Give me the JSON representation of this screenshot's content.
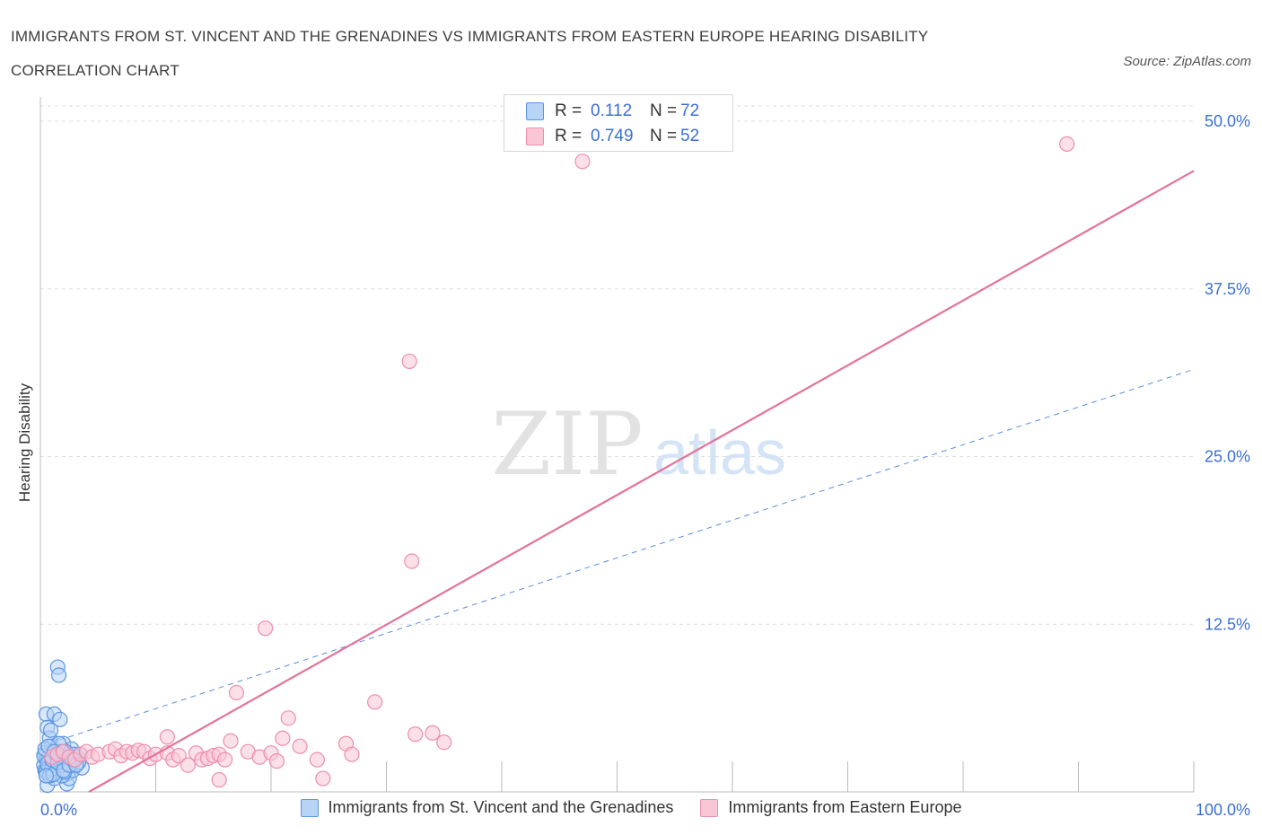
{
  "title": "IMMIGRANTS FROM ST. VINCENT AND THE GRENADINES VS IMMIGRANTS FROM EASTERN EUROPE HEARING DISABILITY CORRELATION CHART",
  "source": "Source: ZipAtlas.com",
  "watermark": {
    "zip": "ZIP",
    "atlas": "atlas"
  },
  "legend": {
    "rows": [
      {
        "r_label": "R =",
        "r_value": "0.112",
        "n_label": "N =",
        "n_value": "72"
      },
      {
        "r_label": "R =",
        "r_value": "0.749",
        "n_label": "N =",
        "n_value": "52"
      }
    ]
  },
  "colors": {
    "series1_fill": "#b8d4f5",
    "series1_stroke": "#5b95e0",
    "series1_line": "#5a8de0",
    "series2_fill": "#f9c6d6",
    "series2_stroke": "#ec8eae",
    "series2_line": "#e4729a",
    "grid": "#dddddd",
    "tick_label": "#3b6fd4"
  },
  "chart_data": {
    "type": "scatter",
    "title": "IMMIGRANTS FROM ST. VINCENT AND THE GRENADINES VS IMMIGRANTS FROM EASTERN EUROPE HEARING DISABILITY CORRELATION CHART",
    "xlabel": "",
    "ylabel": "Hearing Disability",
    "xlim": [
      0,
      100
    ],
    "ylim": [
      0,
      50
    ],
    "x_tick_labels": [
      "0.0%",
      "100.0%"
    ],
    "y_ticks": [
      12.5,
      25.0,
      37.5,
      50.0
    ],
    "y_tick_labels": [
      "12.5%",
      "25.0%",
      "37.5%",
      "50.0%"
    ],
    "grid": true,
    "legend_position": "top-center",
    "series": [
      {
        "name": "Immigrants from St. Vincent and the Grenadines",
        "R": 0.112,
        "N": 72,
        "trendline": {
          "style": "dashed",
          "x": [
            0,
            100
          ],
          "y": [
            3.4,
            31.5
          ]
        },
        "points": [
          [
            0.3,
            2.0
          ],
          [
            0.4,
            1.6
          ],
          [
            0.5,
            2.4
          ],
          [
            0.6,
            3.0
          ],
          [
            0.7,
            1.8
          ],
          [
            0.8,
            2.2
          ],
          [
            0.9,
            1.4
          ],
          [
            1.0,
            2.6
          ],
          [
            0.5,
            5.8
          ],
          [
            0.6,
            4.8
          ],
          [
            0.8,
            4.0
          ],
          [
            1.2,
            5.8
          ],
          [
            1.0,
            3.4
          ],
          [
            1.4,
            2.0
          ],
          [
            1.5,
            1.6
          ],
          [
            1.6,
            2.8
          ],
          [
            1.7,
            5.4
          ],
          [
            1.8,
            1.2
          ],
          [
            1.9,
            2.2
          ],
          [
            2.0,
            3.6
          ],
          [
            2.1,
            1.8
          ],
          [
            2.2,
            2.4
          ],
          [
            2.3,
            0.6
          ],
          [
            2.4,
            1.4
          ],
          [
            2.5,
            1.0
          ],
          [
            2.6,
            2.0
          ],
          [
            2.7,
            3.2
          ],
          [
            2.8,
            1.6
          ],
          [
            3.0,
            2.4
          ],
          [
            3.2,
            2.6
          ],
          [
            3.4,
            2.8
          ],
          [
            3.6,
            1.8
          ],
          [
            1.5,
            9.3
          ],
          [
            1.6,
            8.7
          ],
          [
            0.6,
            0.5
          ],
          [
            0.9,
            3.0
          ],
          [
            1.1,
            2.8
          ],
          [
            1.3,
            1.9
          ],
          [
            0.4,
            2.9
          ],
          [
            0.7,
            2.6
          ],
          [
            1.9,
            1.2
          ],
          [
            2.2,
            3.0
          ],
          [
            1.2,
            1.0
          ],
          [
            0.5,
            1.5
          ],
          [
            0.8,
            1.2
          ],
          [
            1.0,
            1.7
          ],
          [
            1.3,
            2.3
          ],
          [
            1.7,
            2.5
          ],
          [
            2.0,
            2.9
          ],
          [
            2.4,
            2.2
          ],
          [
            0.3,
            2.7
          ],
          [
            0.6,
            2.1
          ],
          [
            1.1,
            1.3
          ],
          [
            1.4,
            2.7
          ],
          [
            1.8,
            2.0
          ],
          [
            2.1,
            1.5
          ],
          [
            2.6,
            2.6
          ],
          [
            3.3,
            2.2
          ],
          [
            0.9,
            4.6
          ],
          [
            1.6,
            3.6
          ],
          [
            2.9,
            2.8
          ],
          [
            0.4,
            3.2
          ],
          [
            1.0,
            2.4
          ],
          [
            1.5,
            2.2
          ],
          [
            2.0,
            1.6
          ],
          [
            2.5,
            2.0
          ],
          [
            0.7,
            3.4
          ],
          [
            1.2,
            3.0
          ],
          [
            1.9,
            3.0
          ],
          [
            2.8,
            2.4
          ],
          [
            3.1,
            2.0
          ],
          [
            0.5,
            1.2
          ]
        ]
      },
      {
        "name": "Immigrants from Eastern Europe",
        "R": 0.749,
        "N": 52,
        "trendline": {
          "style": "solid",
          "x": [
            4.2,
            100
          ],
          "y": [
            0,
            46.3
          ]
        },
        "points": [
          [
            1.0,
            2.6
          ],
          [
            1.5,
            2.8
          ],
          [
            2.0,
            3.0
          ],
          [
            2.5,
            2.6
          ],
          [
            3.0,
            2.4
          ],
          [
            3.5,
            2.8
          ],
          [
            4.0,
            3.0
          ],
          [
            4.5,
            2.6
          ],
          [
            5.0,
            2.8
          ],
          [
            6.0,
            3.0
          ],
          [
            6.5,
            3.2
          ],
          [
            7.0,
            2.7
          ],
          [
            7.5,
            3.0
          ],
          [
            8.0,
            2.9
          ],
          [
            8.5,
            3.1
          ],
          [
            9.0,
            3.0
          ],
          [
            9.5,
            2.5
          ],
          [
            10.0,
            2.8
          ],
          [
            11.0,
            2.9
          ],
          [
            11.5,
            2.4
          ],
          [
            12.0,
            2.7
          ],
          [
            12.8,
            2.0
          ],
          [
            13.5,
            2.9
          ],
          [
            14.0,
            2.4
          ],
          [
            14.5,
            2.5
          ],
          [
            15.0,
            2.7
          ],
          [
            15.5,
            2.8
          ],
          [
            16.0,
            2.4
          ],
          [
            16.5,
            3.8
          ],
          [
            15.5,
            0.9
          ],
          [
            18.0,
            3.0
          ],
          [
            19.0,
            2.6
          ],
          [
            20.0,
            2.9
          ],
          [
            20.5,
            2.3
          ],
          [
            21.0,
            4.0
          ],
          [
            21.5,
            5.5
          ],
          [
            22.5,
            3.4
          ],
          [
            24.0,
            2.4
          ],
          [
            24.5,
            1.0
          ],
          [
            26.5,
            3.6
          ],
          [
            27.0,
            2.8
          ],
          [
            29.0,
            6.7
          ],
          [
            32.5,
            4.3
          ],
          [
            34.0,
            4.4
          ],
          [
            35.0,
            3.7
          ],
          [
            17.0,
            7.4
          ],
          [
            11.0,
            4.1
          ],
          [
            19.5,
            12.2
          ],
          [
            32.0,
            32.1
          ],
          [
            32.2,
            17.2
          ],
          [
            47.0,
            47.0
          ],
          [
            89.0,
            48.3
          ]
        ]
      }
    ]
  },
  "bottom_legend": [
    "Immigrants from St. Vincent and the Grenadines",
    "Immigrants from Eastern Europe"
  ]
}
